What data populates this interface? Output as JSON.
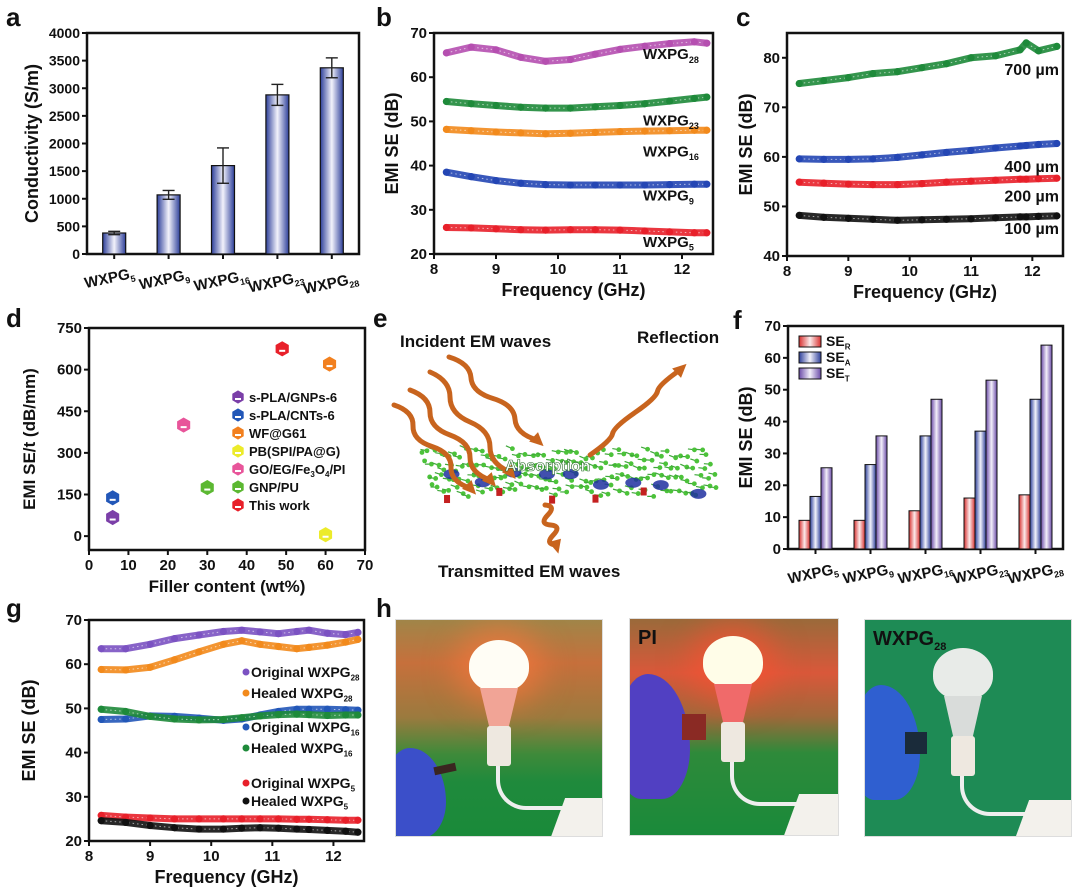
{
  "figure": {
    "panel_letters": [
      "a",
      "b",
      "c",
      "d",
      "e",
      "f",
      "g",
      "h"
    ]
  },
  "chart_data": [
    {
      "id": "a",
      "type": "bar",
      "title": "",
      "xlabel": "",
      "ylabel": "Conductivity (S/m)",
      "categories": [
        [
          "WXPG",
          "5"
        ],
        [
          "WXPG",
          "9"
        ],
        [
          "WXPG",
          "16"
        ],
        [
          "WXPG",
          "23"
        ],
        [
          "WXPG",
          "28"
        ]
      ],
      "values": [
        380,
        1070,
        1600,
        2880,
        3370
      ],
      "errors": [
        30,
        80,
        320,
        190,
        180
      ],
      "ylim": [
        0,
        4000
      ],
      "yticks": [
        0,
        500,
        1000,
        1500,
        2000,
        2500,
        3000,
        3500,
        4000
      ],
      "bar_color": "#2d3f9a"
    },
    {
      "id": "b",
      "type": "line",
      "xlabel": "Frequency (GHz)",
      "ylabel": "EMI SE (dB)",
      "xlim": [
        8,
        12.5
      ],
      "ylim": [
        20,
        70
      ],
      "xticks": [
        8,
        9,
        10,
        11,
        12
      ],
      "yticks": [
        20,
        30,
        40,
        50,
        60,
        70
      ],
      "x": [
        8.2,
        8.6,
        9.0,
        9.4,
        9.8,
        10.2,
        10.6,
        11.0,
        11.4,
        11.8,
        12.2,
        12.4
      ],
      "series": [
        {
          "name": "WXPG",
          "sub": "28",
          "color": "#b54fb0",
          "values": [
            65.5,
            66.8,
            66.2,
            64.5,
            63.6,
            64.0,
            65.2,
            66.3,
            67.0,
            67.6,
            68.0,
            67.7
          ]
        },
        {
          "name": "WXPG",
          "sub": "23",
          "color": "#1e8a3a",
          "values": [
            54.5,
            54.0,
            53.6,
            53.2,
            53.0,
            53.0,
            53.3,
            53.6,
            54.0,
            54.6,
            55.2,
            55.5
          ]
        },
        {
          "name": "WXPG",
          "sub": "16",
          "color": "#f28a1c",
          "values": [
            48.2,
            47.9,
            47.6,
            47.4,
            47.2,
            47.3,
            47.5,
            47.7,
            47.8,
            47.9,
            48.0,
            48.0
          ]
        },
        {
          "name": "WXPG",
          "sub": "9",
          "color": "#2446b4",
          "values": [
            38.5,
            37.5,
            36.6,
            36.0,
            35.7,
            35.6,
            35.6,
            35.6,
            35.6,
            35.7,
            35.8,
            35.8
          ]
        },
        {
          "name": "WXPG",
          "sub": "5",
          "color": "#e8202a",
          "values": [
            26.0,
            25.9,
            25.7,
            25.5,
            25.4,
            25.5,
            25.5,
            25.4,
            25.2,
            25.0,
            24.8,
            24.8
          ]
        }
      ]
    },
    {
      "id": "c",
      "type": "line",
      "xlabel": "Frequency (GHz)",
      "ylabel": "EMI SE (dB)",
      "xlim": [
        8,
        12.5
      ],
      "ylim": [
        40,
        85
      ],
      "xticks": [
        8,
        9,
        10,
        11,
        12
      ],
      "yticks": [
        40,
        50,
        60,
        70,
        80
      ],
      "x": [
        8.2,
        8.6,
        9.0,
        9.4,
        9.8,
        10.2,
        10.6,
        11.0,
        11.4,
        11.8,
        11.9,
        12.1,
        12.4
      ],
      "series": [
        {
          "name": "700 µm",
          "color": "#1e8a3a",
          "values": [
            74.8,
            75.4,
            76.0,
            76.8,
            77.2,
            78.0,
            78.8,
            80.0,
            80.4,
            81.6,
            83.0,
            81.4,
            82.3
          ]
        },
        {
          "name": "400 µm",
          "color": "#2446b4",
          "values": [
            59.6,
            59.5,
            59.5,
            59.6,
            59.9,
            60.4,
            60.9,
            61.3,
            61.8,
            62.2,
            62.3,
            62.5,
            62.7
          ]
        },
        {
          "name": "200 µm",
          "color": "#e8202a",
          "values": [
            54.9,
            54.7,
            54.5,
            54.4,
            54.4,
            54.6,
            54.9,
            55.1,
            55.3,
            55.5,
            55.5,
            55.6,
            55.7
          ]
        },
        {
          "name": "100 µm",
          "color": "#111111",
          "values": [
            48.2,
            47.8,
            47.6,
            47.4,
            47.2,
            47.3,
            47.4,
            47.5,
            47.7,
            47.9,
            47.9,
            48.0,
            48.1
          ]
        }
      ]
    },
    {
      "id": "d",
      "type": "scatter",
      "xlabel": "Filler content (wt%)",
      "ylabel": "EMI SE/t (dB/mm)",
      "xlim": [
        0,
        70
      ],
      "ylim": [
        -50,
        750
      ],
      "xticks": [
        0,
        10,
        20,
        30,
        40,
        50,
        60,
        70
      ],
      "yticks": [
        0,
        150,
        300,
        450,
        600,
        750
      ],
      "legend_position": "center-right",
      "series": [
        {
          "name": "s-PLA/GNPs-6",
          "color": "#7b3fa8",
          "x": 6,
          "y": 67
        },
        {
          "name": "s-PLA/CNTs-6",
          "color": "#2257b8",
          "x": 6,
          "y": 138
        },
        {
          "name": "WF@G61",
          "color": "#f2801f",
          "x": 61,
          "y": 620
        },
        {
          "name": "PB(SPI/PA@G)",
          "color": "#eceb2a",
          "x": 60,
          "y": 5
        },
        {
          "name": "GO/EG/Fe3O4/PI",
          "label_parts": [
            "GO/EG/Fe",
            "3",
            "O",
            "4",
            "/PI"
          ],
          "color": "#e8559a",
          "x": 24,
          "y": 400
        },
        {
          "name": "GNP/PU",
          "color": "#5cb832",
          "x": 30,
          "y": 175
        },
        {
          "name": "This work",
          "color": "#e8202a",
          "x": 49,
          "y": 675
        }
      ]
    },
    {
      "id": "f",
      "type": "bar",
      "xlabel": "",
      "ylabel": "EMI SE (dB)",
      "categories": [
        [
          "WXPG",
          "5"
        ],
        [
          "WXPG",
          "9"
        ],
        [
          "WXPG",
          "16"
        ],
        [
          "WXPG",
          "23"
        ],
        [
          "WXPG",
          "28"
        ]
      ],
      "ylim": [
        0,
        70
      ],
      "yticks": [
        0,
        10,
        20,
        30,
        40,
        50,
        60,
        70
      ],
      "legend_position": "top-left",
      "series": [
        {
          "name": "SE",
          "sub": "R",
          "color": "#d8302f",
          "values": [
            9,
            9,
            12,
            16,
            17
          ]
        },
        {
          "name": "SE",
          "sub": "A",
          "color": "#2d3f9a",
          "values": [
            16.5,
            26.5,
            35.5,
            37,
            47
          ]
        },
        {
          "name": "SE",
          "sub": "T",
          "color": "#6a4aa8",
          "values": [
            25.5,
            35.5,
            47,
            53,
            64
          ]
        }
      ]
    },
    {
      "id": "g",
      "type": "line",
      "xlabel": "Frequency (GHz)",
      "ylabel": "EMI SE (dB)",
      "xlim": [
        8,
        12.5
      ],
      "ylim": [
        20,
        70
      ],
      "xticks": [
        8,
        9,
        10,
        11,
        12
      ],
      "yticks": [
        20,
        30,
        40,
        50,
        60,
        70
      ],
      "x": [
        8.2,
        8.6,
        9.0,
        9.4,
        9.8,
        10.2,
        10.5,
        10.8,
        11.1,
        11.4,
        11.6,
        11.9,
        12.2,
        12.4
      ],
      "series": [
        {
          "name": "Original WXPG",
          "sub": "28",
          "color": "#7b52c2",
          "values": [
            63.5,
            63.5,
            64.5,
            65.8,
            66.6,
            67.4,
            67.7,
            67.3,
            66.9,
            67.4,
            67.7,
            67.0,
            66.7,
            67.2
          ]
        },
        {
          "name": "Healed WXPG",
          "sub": "28",
          "color": "#f28a1c",
          "values": [
            58.8,
            58.7,
            59.3,
            61.0,
            62.8,
            64.5,
            65.3,
            64.5,
            64.0,
            63.5,
            63.8,
            64.3,
            65.0,
            65.6
          ]
        },
        {
          "name": "Original WXPG",
          "sub": "16",
          "color": "#2257b8",
          "values": [
            47.5,
            47.6,
            48.3,
            48.2,
            47.8,
            47.3,
            47.6,
            48.5,
            49.3,
            49.8,
            49.8,
            49.8,
            49.7,
            49.6
          ]
        },
        {
          "name": "Healed WXPG",
          "sub": "16",
          "color": "#1e8a3a",
          "values": [
            49.8,
            49.3,
            48.2,
            47.6,
            47.4,
            47.5,
            47.9,
            48.3,
            48.6,
            48.7,
            48.6,
            48.4,
            48.5,
            48.5
          ]
        },
        {
          "name": "Original WXPG",
          "sub": "5",
          "color": "#e8202a",
          "values": [
            25.8,
            25.4,
            25.2,
            25.0,
            25.0,
            25.0,
            25.0,
            25.0,
            25.0,
            24.9,
            24.9,
            24.8,
            24.7,
            24.7
          ]
        },
        {
          "name": "Healed WXPG",
          "sub": "5",
          "color": "#111111",
          "values": [
            24.6,
            24.2,
            23.5,
            23.0,
            22.7,
            22.7,
            22.9,
            23.0,
            22.9,
            22.7,
            22.6,
            22.4,
            22.2,
            22.0
          ]
        }
      ]
    }
  ],
  "diagram_e": {
    "incident_label": "Incident EM waves",
    "reflection_label": "Reflection",
    "absorption_label": "Absorption",
    "transmitted_label": "Transmitted EM waves"
  },
  "photos_h": [
    {
      "label": "",
      "sub": "",
      "bulb_state": "lit",
      "sample": "none"
    },
    {
      "label": "PI",
      "sub": "",
      "bulb_state": "lit",
      "sample": "PI film"
    },
    {
      "label": "WXPG",
      "sub": "28",
      "bulb_state": "off",
      "sample": "WXPG28 film"
    }
  ]
}
